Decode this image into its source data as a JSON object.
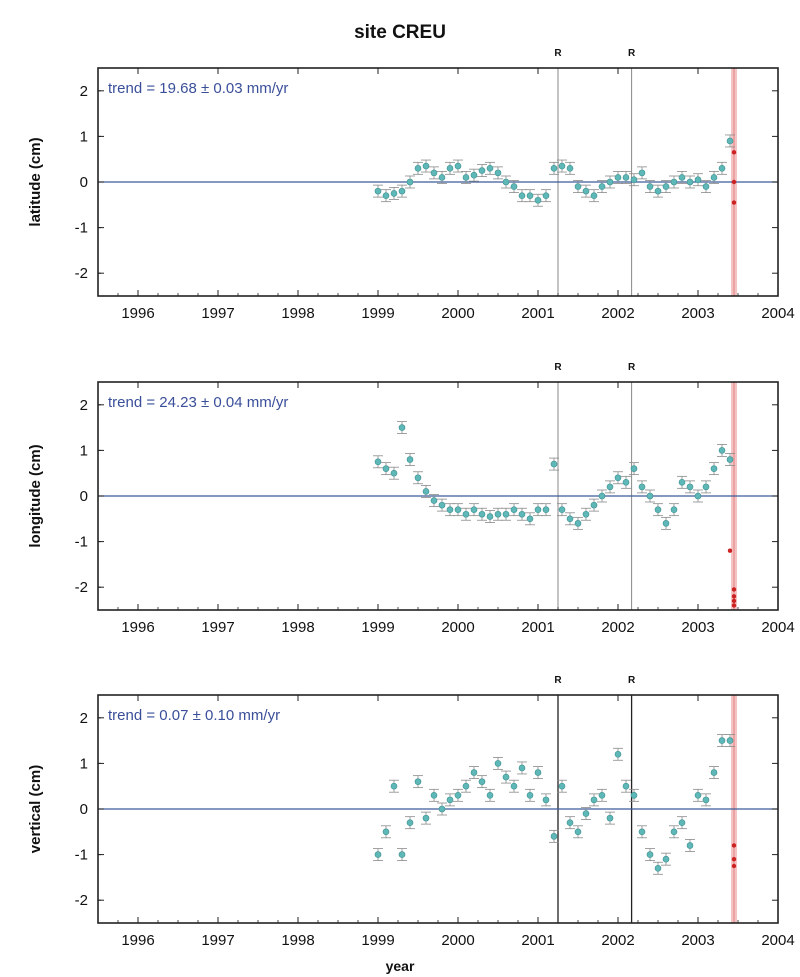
{
  "figure": {
    "title": "site CREU",
    "xlabel": "year"
  },
  "chart_data": [
    {
      "type": "scatter",
      "ylabel": "latitude (cm)",
      "annotation": "trend = 19.68 ± 0.03 mm/yr",
      "xlim": [
        1995.5,
        2004.0
      ],
      "ylim": [
        -2.5,
        2.5
      ],
      "x_ticks": [
        "1996",
        "1997",
        "1998",
        "1999",
        "2000",
        "2001",
        "2002",
        "2003",
        "2004"
      ],
      "y_ticks": [
        "2",
        "1",
        "0",
        "-1",
        "-2"
      ],
      "events": [
        {
          "x": 2001.25,
          "label": "R"
        },
        {
          "x": 2002.17,
          "label": "R"
        }
      ],
      "highlight_x": 2003.45,
      "zero_line": 0,
      "series": [
        {
          "x": [
            1999.0,
            1999.1,
            1999.2,
            1999.3,
            1999.4,
            1999.5,
            1999.6,
            1999.7,
            1999.8,
            1999.9,
            2000.0,
            2000.1,
            2000.2,
            2000.3,
            2000.4,
            2000.5,
            2000.6,
            2000.7,
            2000.8,
            2000.9,
            2001.0,
            2001.1,
            2001.2,
            2001.3,
            2001.4,
            2001.5,
            2001.6,
            2001.7,
            2001.8,
            2001.9,
            2002.0,
            2002.1,
            2002.2,
            2002.3,
            2002.4,
            2002.5,
            2002.6,
            2002.7,
            2002.8,
            2002.9,
            2003.0,
            2003.1,
            2003.2,
            2003.3,
            2003.4
          ],
          "y": [
            -0.2,
            -0.3,
            -0.25,
            -0.2,
            0.0,
            0.3,
            0.35,
            0.2,
            0.1,
            0.3,
            0.35,
            0.1,
            0.15,
            0.25,
            0.3,
            0.2,
            0.0,
            -0.1,
            -0.3,
            -0.3,
            -0.4,
            -0.3,
            0.3,
            0.35,
            0.3,
            -0.1,
            -0.2,
            -0.3,
            -0.1,
            0.0,
            0.1,
            0.1,
            0.05,
            0.2,
            -0.1,
            -0.2,
            -0.1,
            0.0,
            0.1,
            0.0,
            0.05,
            -0.1,
            0.1,
            0.3,
            0.9
          ]
        },
        {
          "x": [
            2003.45,
            2003.45,
            2003.45
          ],
          "y": [
            0.65,
            0.0,
            -0.45
          ],
          "color": "#cc2222"
        }
      ]
    },
    {
      "type": "scatter",
      "ylabel": "longitude (cm)",
      "annotation": "trend = 24.23 ± 0.04 mm/yr",
      "xlim": [
        1995.5,
        2004.0
      ],
      "ylim": [
        -2.5,
        2.5
      ],
      "x_ticks": [
        "1996",
        "1997",
        "1998",
        "1999",
        "2000",
        "2001",
        "2002",
        "2003",
        "2004"
      ],
      "y_ticks": [
        "2",
        "1",
        "0",
        "-1",
        "-2"
      ],
      "events": [
        {
          "x": 2001.25,
          "label": "R"
        },
        {
          "x": 2002.17,
          "label": "R"
        }
      ],
      "highlight_x": 2003.45,
      "zero_line": 0,
      "series": [
        {
          "x": [
            1999.0,
            1999.1,
            1999.2,
            1999.3,
            1999.4,
            1999.5,
            1999.6,
            1999.7,
            1999.8,
            1999.9,
            2000.0,
            2000.1,
            2000.2,
            2000.3,
            2000.4,
            2000.5,
            2000.6,
            2000.7,
            2000.8,
            2000.9,
            2001.0,
            2001.1,
            2001.2,
            2001.3,
            2001.4,
            2001.5,
            2001.6,
            2001.7,
            2001.8,
            2001.9,
            2002.0,
            2002.1,
            2002.2,
            2002.3,
            2002.4,
            2002.5,
            2002.6,
            2002.7,
            2002.8,
            2002.9,
            2003.0,
            2003.1,
            2003.2,
            2003.3,
            2003.4
          ],
          "y": [
            0.75,
            0.6,
            0.5,
            1.5,
            0.8,
            0.4,
            0.1,
            -0.1,
            -0.2,
            -0.3,
            -0.3,
            -0.4,
            -0.3,
            -0.4,
            -0.45,
            -0.4,
            -0.4,
            -0.3,
            -0.4,
            -0.5,
            -0.3,
            -0.3,
            0.7,
            -0.3,
            -0.5,
            -0.6,
            -0.4,
            -0.2,
            0.0,
            0.2,
            0.4,
            0.3,
            0.6,
            0.2,
            0.0,
            -0.3,
            -0.6,
            -0.3,
            0.3,
            0.2,
            0.0,
            0.2,
            0.6,
            1.0,
            0.8
          ]
        },
        {
          "x": [
            2003.4,
            2003.45,
            2003.45,
            2003.45,
            2003.45
          ],
          "y": [
            -1.2,
            -2.05,
            -2.2,
            -2.3,
            -2.4
          ],
          "color": "#cc2222"
        }
      ]
    },
    {
      "type": "scatter",
      "ylabel": "vertical (cm)",
      "annotation": "trend = 0.07 ± 0.10 mm/yr",
      "xlim": [
        1995.5,
        2004.0
      ],
      "ylim": [
        -2.5,
        2.5
      ],
      "x_ticks": [
        "1996",
        "1997",
        "1998",
        "1999",
        "2000",
        "2001",
        "2002",
        "2003",
        "2004"
      ],
      "y_ticks": [
        "2",
        "1",
        "0",
        "-1",
        "-2"
      ],
      "events": [
        {
          "x": 2001.25,
          "label": "R"
        },
        {
          "x": 2002.17,
          "label": "R"
        }
      ],
      "highlight_x": 2003.45,
      "zero_line": 0,
      "series": [
        {
          "x": [
            1999.0,
            1999.1,
            1999.2,
            1999.3,
            1999.4,
            1999.5,
            1999.6,
            1999.7,
            1999.8,
            1999.9,
            2000.0,
            2000.1,
            2000.2,
            2000.3,
            2000.4,
            2000.5,
            2000.6,
            2000.7,
            2000.8,
            2000.9,
            2001.0,
            2001.1,
            2001.2,
            2001.3,
            2001.4,
            2001.5,
            2001.6,
            2001.7,
            2001.8,
            2001.9,
            2002.0,
            2002.1,
            2002.2,
            2002.3,
            2002.4,
            2002.5,
            2002.6,
            2002.7,
            2002.8,
            2002.9,
            2003.0,
            2003.1,
            2003.2,
            2003.3,
            2003.4
          ],
          "y": [
            -1.0,
            -0.5,
            0.5,
            -1.0,
            -0.3,
            0.6,
            -0.2,
            0.3,
            0.0,
            0.2,
            0.3,
            0.5,
            0.8,
            0.6,
            0.3,
            1.0,
            0.7,
            0.5,
            0.9,
            0.3,
            0.8,
            0.2,
            -0.6,
            0.5,
            -0.3,
            -0.5,
            -0.1,
            0.2,
            0.3,
            -0.2,
            1.2,
            0.5,
            0.3,
            -0.5,
            -1.0,
            -1.3,
            -1.1,
            -0.5,
            -0.3,
            -0.8,
            0.3,
            0.2,
            0.8,
            1.5,
            1.5
          ]
        },
        {
          "x": [
            2003.45,
            2003.45,
            2003.45
          ],
          "y": [
            -0.8,
            -1.1,
            -1.25
          ],
          "color": "#cc2222"
        }
      ]
    }
  ]
}
